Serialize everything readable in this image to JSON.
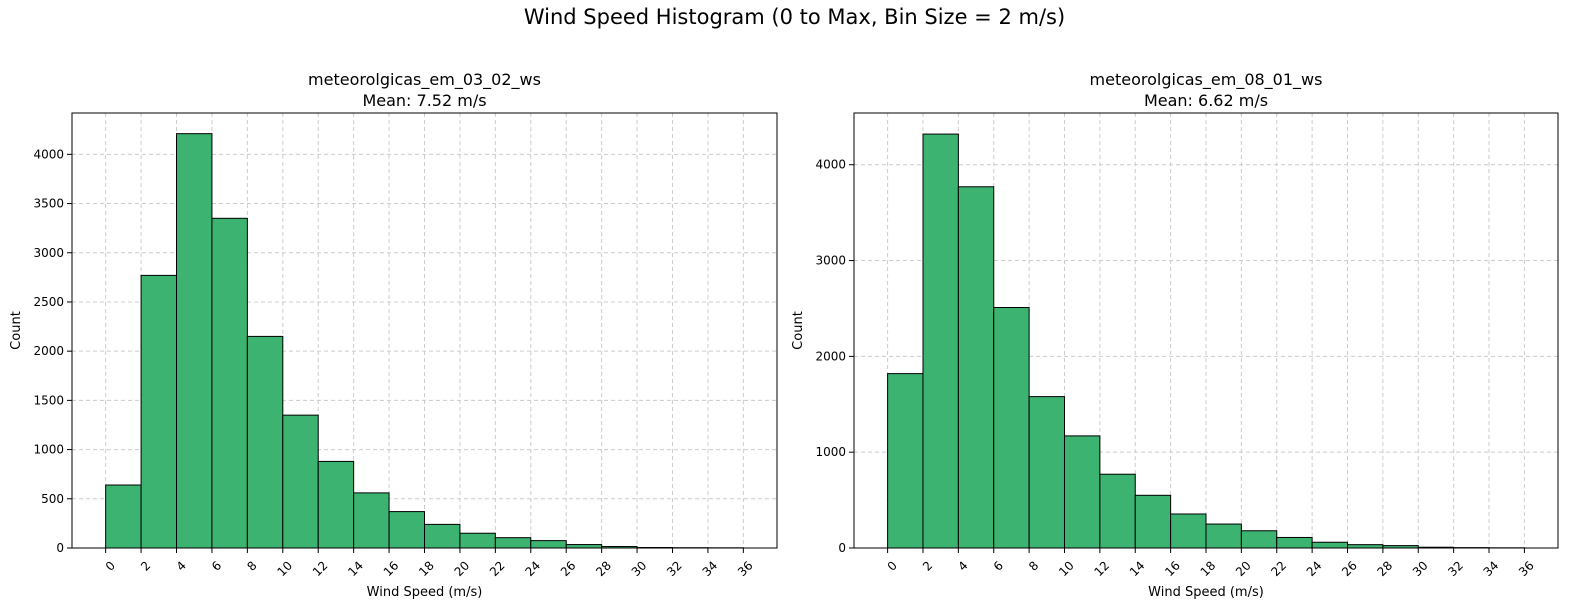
{
  "figure_title": "Wind Speed Histogram (0 to Max, Bin Size = 2 m/s)",
  "bar_color": "#3cb371",
  "chart_data": [
    {
      "type": "bar",
      "title_line1": "meteorolgicas_em_03_02_ws",
      "title_line2": "Mean: 7.52 m/s",
      "xlabel": "Wind Speed (m/s)",
      "ylabel": "Count",
      "bin_size": 2,
      "bin_edges": [
        0,
        2,
        4,
        6,
        8,
        10,
        12,
        14,
        16,
        18,
        20,
        22,
        24,
        26,
        28,
        30,
        32,
        34,
        36
      ],
      "values": [
        640,
        2770,
        4210,
        3350,
        2150,
        1350,
        880,
        560,
        370,
        240,
        150,
        105,
        75,
        35,
        15,
        5,
        3,
        2
      ],
      "xticks": [
        "0",
        "2",
        "4",
        "6",
        "8",
        "10",
        "12",
        "14",
        "16",
        "18",
        "20",
        "22",
        "24",
        "26",
        "28",
        "30",
        "32",
        "34",
        "36"
      ],
      "yticks": [
        0,
        500,
        1000,
        1500,
        2000,
        2500,
        3000,
        3500,
        4000
      ],
      "ylim": [
        0,
        4420
      ],
      "xlim": [
        -1.9,
        37.9
      ],
      "grid": true
    },
    {
      "type": "bar",
      "title_line1": "meteorolgicas_em_08_01_ws",
      "title_line2": "Mean: 6.62 m/s",
      "xlabel": "Wind Speed (m/s)",
      "ylabel": "Count",
      "bin_size": 2,
      "bin_edges": [
        0,
        2,
        4,
        6,
        8,
        10,
        12,
        14,
        16,
        18,
        20,
        22,
        24,
        26,
        28,
        30,
        32,
        34,
        36
      ],
      "values": [
        1820,
        4320,
        3770,
        2510,
        1580,
        1170,
        770,
        550,
        355,
        250,
        180,
        110,
        60,
        35,
        25,
        8,
        4,
        2
      ],
      "xticks": [
        "0",
        "2",
        "4",
        "6",
        "8",
        "10",
        "12",
        "14",
        "16",
        "18",
        "20",
        "22",
        "24",
        "26",
        "28",
        "30",
        "32",
        "34",
        "36"
      ],
      "yticks": [
        0,
        1000,
        2000,
        3000,
        4000
      ],
      "ylim": [
        0,
        4540
      ],
      "xlim": [
        -1.9,
        37.9
      ],
      "grid": true
    }
  ]
}
